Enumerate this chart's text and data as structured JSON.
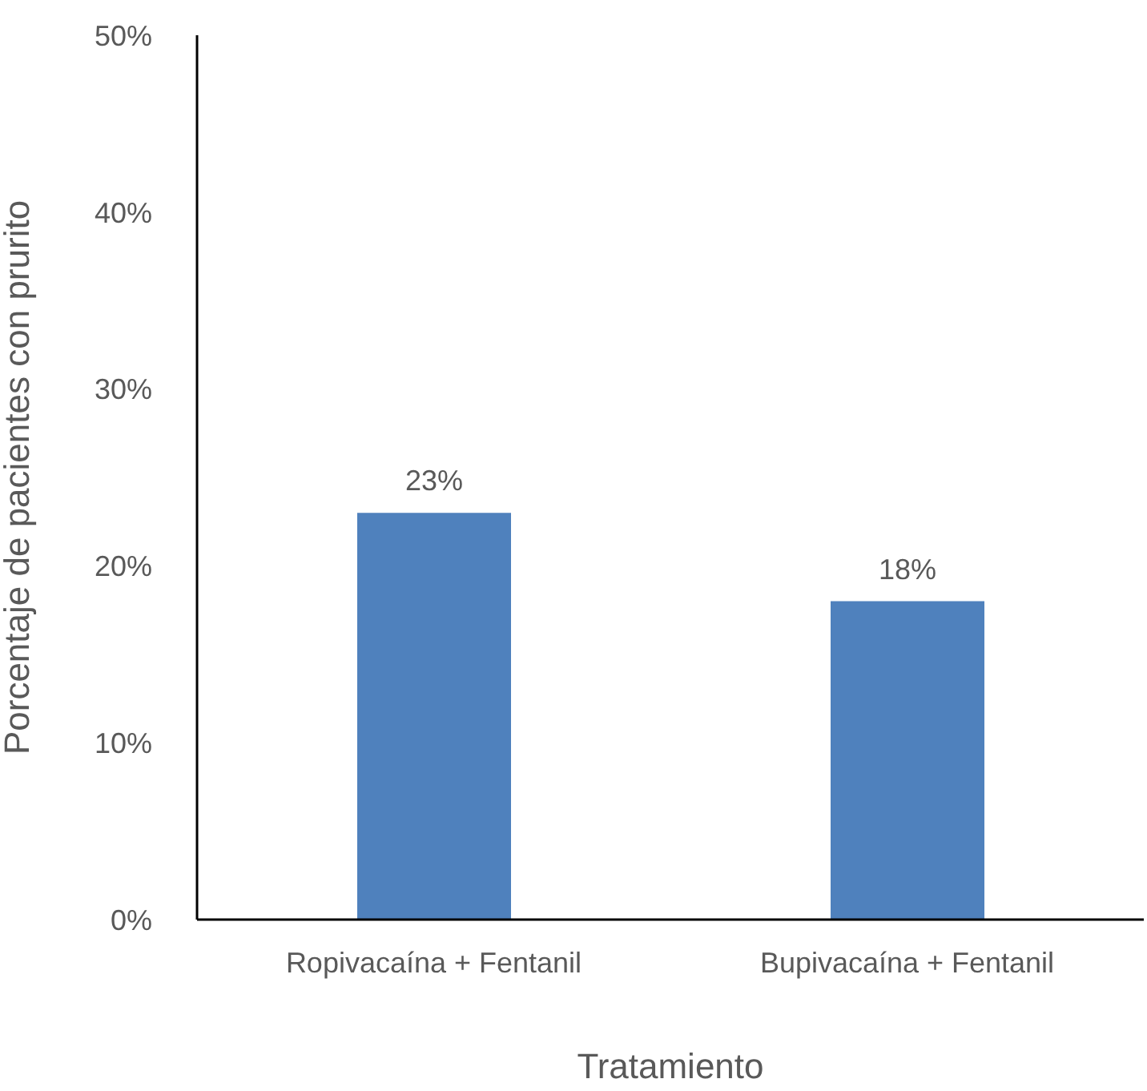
{
  "chart_data": {
    "type": "bar",
    "xlabel": "Tratamiento",
    "ylabel": "Porcentaje de pacientes con prurito",
    "categories": [
      "Ropivacaína + Fentanil",
      "Bupivacaína + Fentanil"
    ],
    "values": [
      23,
      18
    ],
    "value_labels": [
      "23%",
      "18%"
    ],
    "color": "#4f81bd",
    "ylim": [
      0,
      50
    ],
    "yticks": [
      {
        "value": 0,
        "label": "0%"
      },
      {
        "value": 10,
        "label": "10%"
      },
      {
        "value": 20,
        "label": "20%"
      },
      {
        "value": 30,
        "label": "30%"
      },
      {
        "value": 40,
        "label": "40%"
      },
      {
        "value": 50,
        "label": "50%"
      }
    ],
    "grid": false,
    "legend": false
  }
}
